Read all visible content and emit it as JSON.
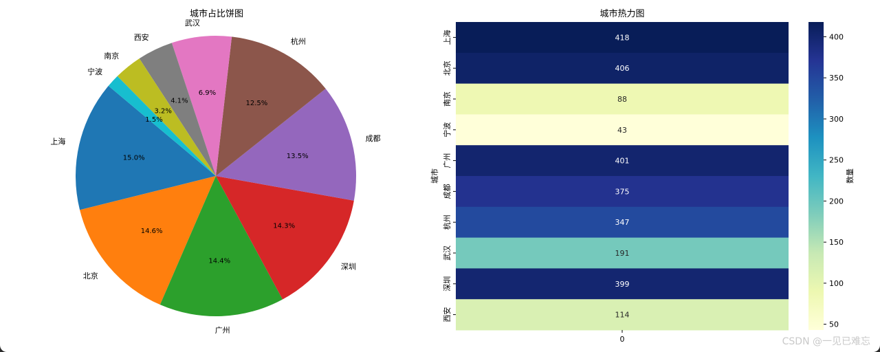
{
  "watermark": "CSDN @一见已难忘",
  "chart_data": [
    {
      "type": "pie",
      "title": "城市占比饼图",
      "slices": [
        {
          "label": "上海",
          "percent": 15.0,
          "value": 418,
          "color": "#1f77b4"
        },
        {
          "label": "北京",
          "percent": 14.6,
          "value": 406,
          "color": "#ff7f0e"
        },
        {
          "label": "广州",
          "percent": 14.4,
          "value": 401,
          "color": "#2ca02c"
        },
        {
          "label": "深圳",
          "percent": 14.3,
          "value": 399,
          "color": "#d62728"
        },
        {
          "label": "成都",
          "percent": 13.5,
          "value": 375,
          "color": "#9467bd"
        },
        {
          "label": "杭州",
          "percent": 12.5,
          "value": 347,
          "color": "#8c564b"
        },
        {
          "label": "武汉",
          "percent": 6.9,
          "value": 191,
          "color": "#e377c2"
        },
        {
          "label": "西安",
          "percent": 4.1,
          "value": 114,
          "color": "#7f7f7f"
        },
        {
          "label": "南京",
          "percent": 3.2,
          "value": 88,
          "color": "#bcbd22"
        },
        {
          "label": "宁波",
          "percent": 1.5,
          "value": 43,
          "color": "#17becf"
        }
      ],
      "start_angle_deg": 140,
      "direction": "counterclockwise",
      "pct_labels": [
        "15.0%",
        "14.6%",
        "14.4%",
        "14.3%",
        "13.5%",
        "12.5%",
        "6.9%",
        "4.1%",
        "3.2%",
        "1.5%"
      ]
    },
    {
      "type": "heatmap",
      "title": "城市热力图",
      "rows": [
        "上海",
        "北京",
        "南京",
        "宁波",
        "广州",
        "成都",
        "杭州",
        "武汉",
        "深圳",
        "西安"
      ],
      "columns": [
        "0"
      ],
      "values": [
        418,
        406,
        88,
        43,
        401,
        375,
        347,
        191,
        399,
        114
      ],
      "value_labels": [
        "418",
        "406",
        "88",
        "43",
        "401",
        "375",
        "347",
        "191",
        "399",
        "114"
      ],
      "ylabel": "城市",
      "colormap": "YlGnBu",
      "colorbar": {
        "label": "数量",
        "range": [
          43,
          418
        ],
        "ticks": [
          50,
          100,
          150,
          200,
          250,
          300,
          350,
          400
        ]
      }
    }
  ]
}
